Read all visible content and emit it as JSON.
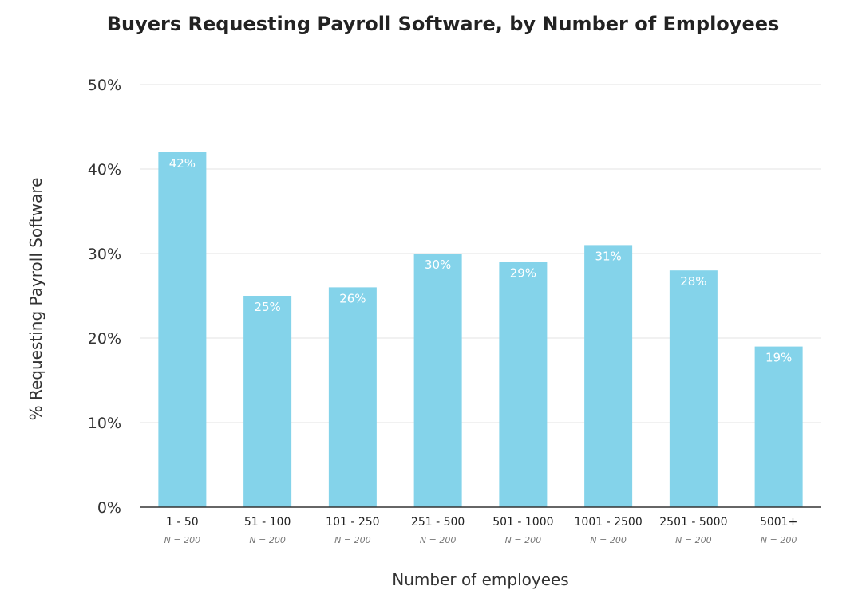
{
  "chart_data": {
    "type": "bar",
    "title": "Buyers Requesting Payroll Software, by Number of Employees",
    "xlabel": "Number of employees",
    "ylabel": "% Requesting Payroll Software",
    "categories": [
      "1 - 50",
      "51 - 100",
      "101 - 250",
      "251 - 500",
      "501 - 1000",
      "1001 - 2500",
      "2501 - 5000",
      "5001+"
    ],
    "sample_labels": [
      "N = 200",
      "N = 200",
      "N = 200",
      "N = 200",
      "N = 200",
      "N = 200",
      "N = 200",
      "N = 200"
    ],
    "values": [
      42,
      25,
      26,
      30,
      29,
      31,
      28,
      19
    ],
    "value_labels": [
      "42%",
      "25%",
      "26%",
      "30%",
      "29%",
      "31%",
      "28%",
      "19%"
    ],
    "ylim": [
      0,
      50
    ],
    "yticks": [
      0,
      10,
      20,
      30,
      40,
      50
    ],
    "ytick_labels": [
      "0%",
      "10%",
      "20%",
      "30%",
      "40%",
      "50%"
    ],
    "grid": true,
    "bar_color": "#84d3ea",
    "grid_color": "#e3e3e3",
    "axis_color": "#333333"
  }
}
